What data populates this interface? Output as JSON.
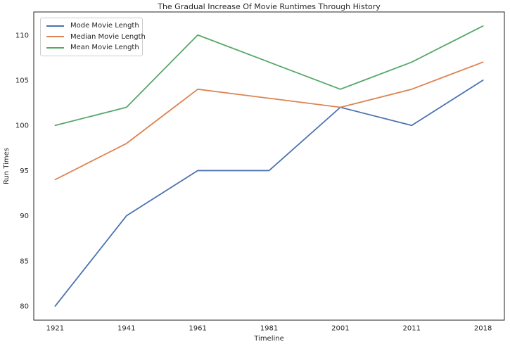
{
  "chart_data": {
    "type": "line",
    "title": "The Gradual Increase Of Movie Runtimes Through History",
    "xlabel": "Timeline",
    "ylabel": "Run Times",
    "categories": [
      "1921",
      "1941",
      "1961",
      "1981",
      "2001",
      "2011",
      "2018"
    ],
    "series": [
      {
        "name": "Mode Movie Length",
        "color": "#4C72B0",
        "values": [
          80,
          90,
          95,
          95,
          102,
          100,
          105
        ]
      },
      {
        "name": "Median Movie Length",
        "color": "#DD8452",
        "values": [
          94,
          98,
          104,
          103,
          102,
          104,
          107
        ]
      },
      {
        "name": "Mean Movie Length",
        "color": "#55A868",
        "values": [
          100,
          102,
          110,
          107,
          104,
          107,
          111
        ]
      }
    ],
    "yticks": [
      80,
      85,
      90,
      95,
      100,
      105,
      110
    ],
    "ylim": [
      78.45,
      112.55
    ],
    "xlim": [
      -0.3,
      6.3
    ],
    "grid": false,
    "legend_position": "upper-left",
    "axis_color": "#262626",
    "background": "#ffffff"
  }
}
